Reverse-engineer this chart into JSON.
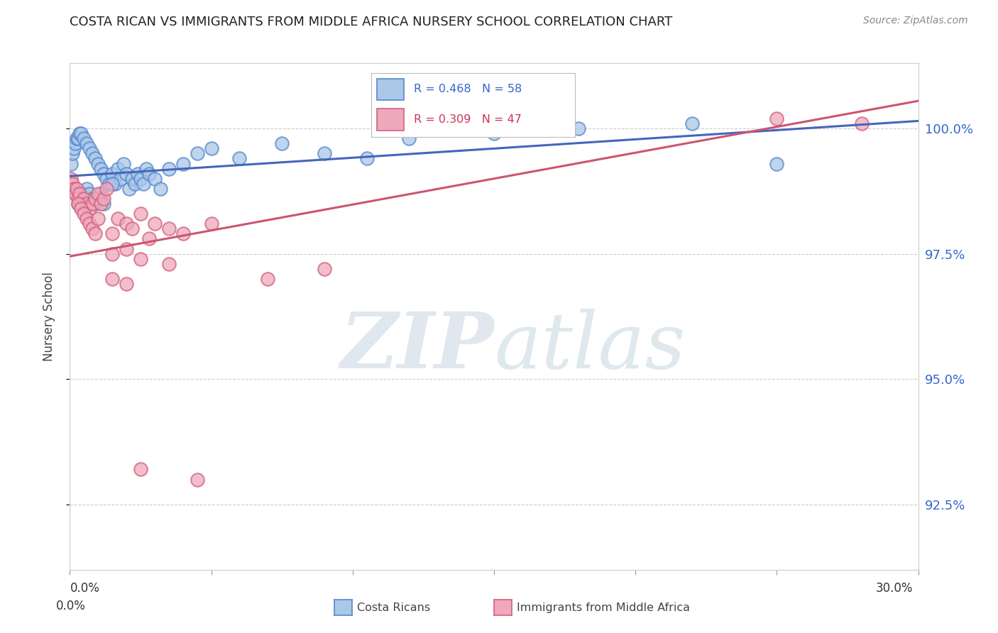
{
  "title": "COSTA RICAN VS IMMIGRANTS FROM MIDDLE AFRICA NURSERY SCHOOL CORRELATION CHART",
  "source": "Source: ZipAtlas.com",
  "ylabel": "Nursery School",
  "ytick_labels": [
    "92.5%",
    "95.0%",
    "97.5%",
    "100.0%"
  ],
  "ytick_values": [
    92.5,
    95.0,
    97.5,
    100.0
  ],
  "xlim": [
    0.0,
    30.0
  ],
  "ylim": [
    91.2,
    101.3
  ],
  "legend1_r": "R = 0.468",
  "legend1_n": "N = 58",
  "legend2_r": "R = 0.309",
  "legend2_n": "N = 47",
  "blue_color_face": "#aac8e8",
  "blue_color_edge": "#5588cc",
  "pink_color_face": "#f0a8bc",
  "pink_color_edge": "#d06080",
  "blue_line_color": "#4466bb",
  "pink_line_color": "#cc5570",
  "blue_scatter_x": [
    0.05,
    0.1,
    0.15,
    0.2,
    0.25,
    0.3,
    0.35,
    0.4,
    0.5,
    0.6,
    0.7,
    0.8,
    0.9,
    1.0,
    1.1,
    1.2,
    1.3,
    1.4,
    1.5,
    1.6,
    1.7,
    1.8,
    1.9,
    2.0,
    2.1,
    2.2,
    2.3,
    2.4,
    2.5,
    2.6,
    2.7,
    2.8,
    3.0,
    3.2,
    3.5,
    4.0,
    4.5,
    5.0,
    6.0,
    7.5,
    9.0,
    10.5,
    12.0,
    15.0,
    18.0,
    22.0,
    25.0,
    0.3,
    0.4,
    0.5,
    0.6,
    0.7,
    0.8,
    0.9,
    1.0,
    1.1,
    1.2,
    1.5
  ],
  "blue_scatter_y": [
    99.3,
    99.5,
    99.6,
    99.7,
    99.8,
    99.8,
    99.9,
    99.9,
    99.8,
    99.7,
    99.6,
    99.5,
    99.4,
    99.3,
    99.2,
    99.1,
    99.0,
    98.9,
    99.1,
    98.9,
    99.2,
    99.0,
    99.3,
    99.1,
    98.8,
    99.0,
    98.9,
    99.1,
    99.0,
    98.9,
    99.2,
    99.1,
    99.0,
    98.8,
    99.2,
    99.3,
    99.5,
    99.6,
    99.4,
    99.7,
    99.5,
    99.4,
    99.8,
    99.9,
    100.0,
    100.1,
    99.3,
    98.5,
    98.6,
    98.7,
    98.8,
    98.7,
    98.6,
    98.5,
    98.6,
    98.7,
    98.5,
    98.9
  ],
  "pink_scatter_x": [
    0.05,
    0.1,
    0.15,
    0.2,
    0.25,
    0.3,
    0.35,
    0.4,
    0.5,
    0.6,
    0.7,
    0.8,
    0.9,
    1.0,
    1.1,
    1.2,
    1.3,
    1.5,
    1.7,
    2.0,
    2.2,
    2.5,
    2.8,
    3.0,
    3.5,
    4.0,
    1.5,
    2.0,
    2.5,
    3.5,
    5.0,
    7.0,
    9.0,
    25.0,
    28.0,
    0.3,
    0.4,
    0.5,
    0.6,
    0.7,
    0.8,
    0.9,
    1.0,
    1.5,
    2.0,
    2.5,
    4.5
  ],
  "pink_scatter_y": [
    99.0,
    98.9,
    98.8,
    98.7,
    98.8,
    98.6,
    98.7,
    98.5,
    98.6,
    98.5,
    98.4,
    98.5,
    98.6,
    98.7,
    98.5,
    98.6,
    98.8,
    97.9,
    98.2,
    98.1,
    98.0,
    98.3,
    97.8,
    98.1,
    98.0,
    97.9,
    97.5,
    97.6,
    97.4,
    97.3,
    98.1,
    97.0,
    97.2,
    100.2,
    100.1,
    98.5,
    98.4,
    98.3,
    98.2,
    98.1,
    98.0,
    97.9,
    98.2,
    97.0,
    96.9,
    93.2,
    93.0
  ],
  "blue_line_x": [
    0.0,
    30.0
  ],
  "blue_line_y": [
    99.05,
    100.15
  ],
  "pink_line_x": [
    0.0,
    30.0
  ],
  "pink_line_y": [
    97.45,
    100.55
  ],
  "grid_color": "#cccccc",
  "grid_style": "--",
  "watermark_zip_color": "#c8d4e0",
  "watermark_atlas_color": "#b8ccd8",
  "bg_color": "#ffffff"
}
